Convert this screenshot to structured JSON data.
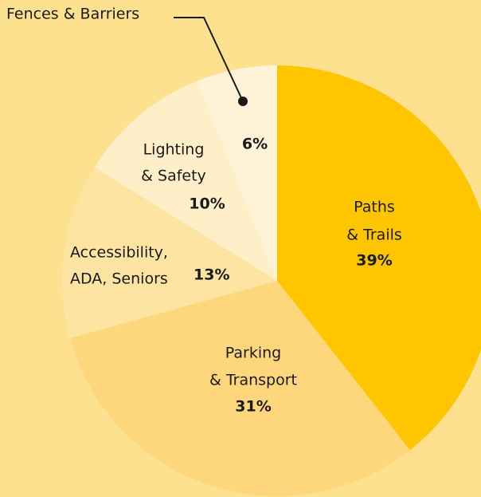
{
  "chart_data": {
    "type": "pie",
    "categories": [
      [
        "Paths",
        "& Trails"
      ],
      [
        "Parking",
        "& Transport"
      ],
      [
        "Accessibility,",
        "ADA, Seniors"
      ],
      [
        "Lighting",
        "& Safety"
      ],
      [
        "Fences & Barriers"
      ]
    ],
    "values": [
      39,
      31,
      13,
      10,
      6
    ],
    "value_labels": [
      "39%",
      "31%",
      "13%",
      "10%",
      "6%"
    ],
    "colors": [
      "#ffc600",
      "#fed77c",
      "#fde4a2",
      "#feefc9",
      "#fef3d6"
    ]
  }
}
